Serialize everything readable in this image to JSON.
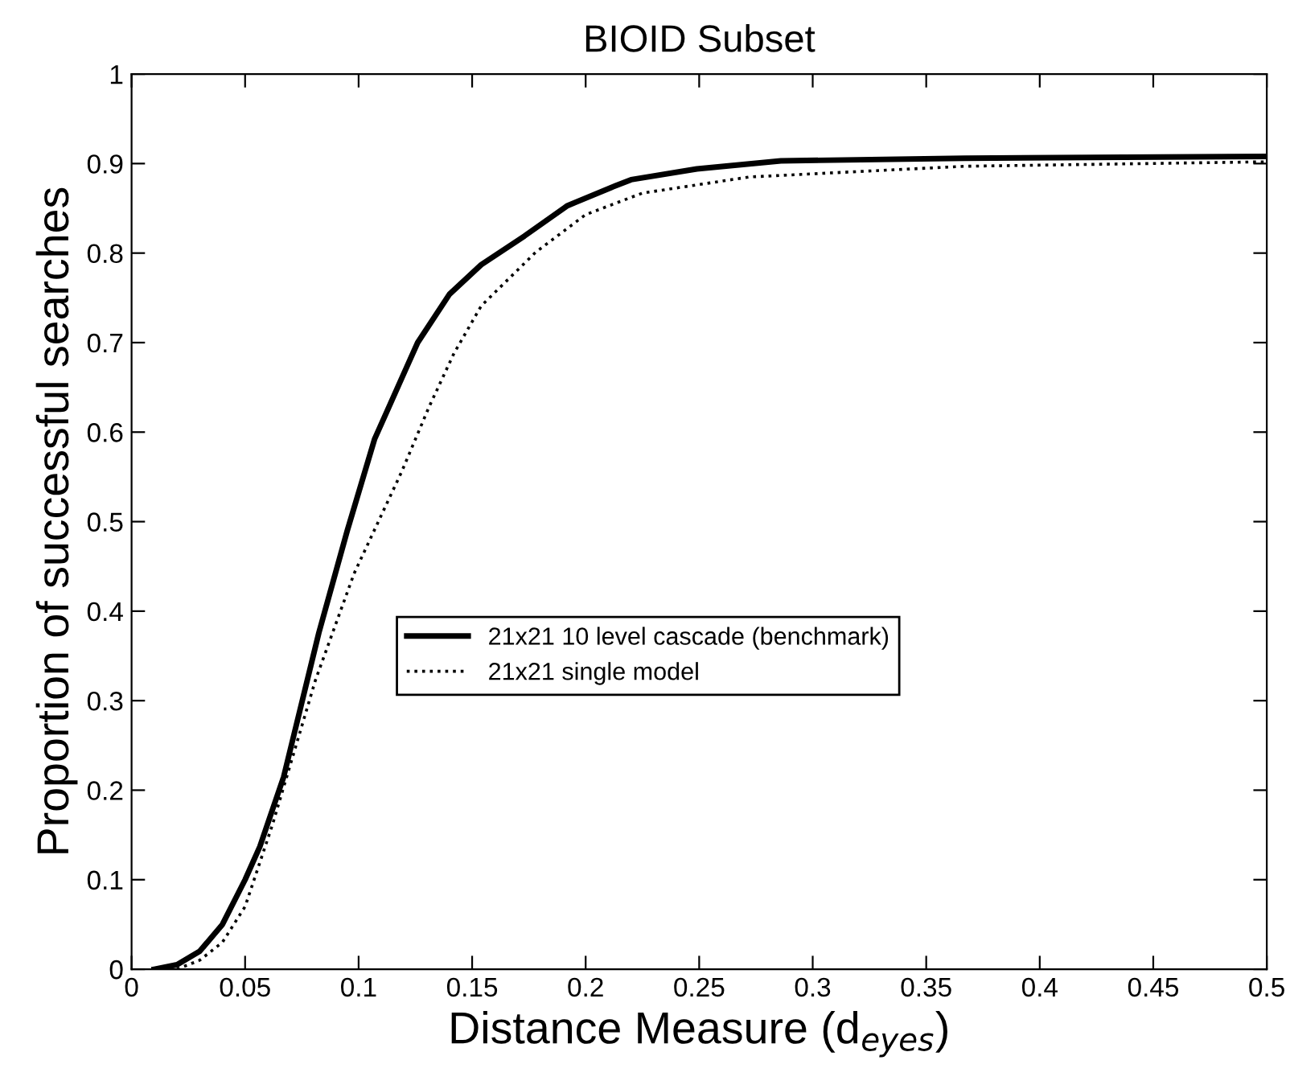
{
  "chart_data": {
    "type": "line",
    "title": "BIOID Subset",
    "xlabel": "Distance Measure (d$_{eyes}$)",
    "ylabel": "Proportion of successful searches",
    "xlim": [
      0,
      0.5
    ],
    "ylim": [
      0,
      1
    ],
    "xticks": [
      0,
      0.05,
      0.1,
      0.15,
      0.2,
      0.25,
      0.3,
      0.35,
      0.4,
      0.45,
      0.5
    ],
    "yticks": [
      0,
      0.1,
      0.2,
      0.3,
      0.4,
      0.5,
      0.6,
      0.7,
      0.8,
      0.9,
      1
    ],
    "grid": false,
    "legend": "center",
    "marker": "none",
    "series": [
      {
        "name": "21x21 10 level cascade (benchmark)",
        "color": "#000000",
        "line_style": "solid",
        "x": [
          0.01,
          0.02,
          0.03,
          0.04,
          0.05,
          0.0565,
          0.067,
          0.0825,
          0.095,
          0.107,
          0.126,
          0.14,
          0.154,
          0.173,
          0.192,
          0.211,
          0.22,
          0.249,
          0.286,
          0.367,
          0.5
        ],
        "values": [
          0,
          0.005,
          0.02,
          0.05,
          0.1,
          0.137,
          0.215,
          0.376,
          0.49,
          0.592,
          0.7,
          0.754,
          0.787,
          0.819,
          0.853,
          0.873,
          0.882,
          0.894,
          0.903,
          0.906,
          0.908
        ]
      },
      {
        "name": "21x21 single model",
        "color": "#000000",
        "line_style": "dotted",
        "x": [
          0.02,
          0.03,
          0.04,
          0.05,
          0.062,
          0.081,
          0.098,
          0.119,
          0.131,
          0.142,
          0.154,
          0.178,
          0.2,
          0.225,
          0.272,
          0.367,
          0.5
        ],
        "values": [
          0,
          0.01,
          0.03,
          0.07,
          0.161,
          0.323,
          0.442,
          0.556,
          0.628,
          0.688,
          0.741,
          0.801,
          0.843,
          0.867,
          0.885,
          0.897,
          0.902
        ]
      }
    ]
  }
}
